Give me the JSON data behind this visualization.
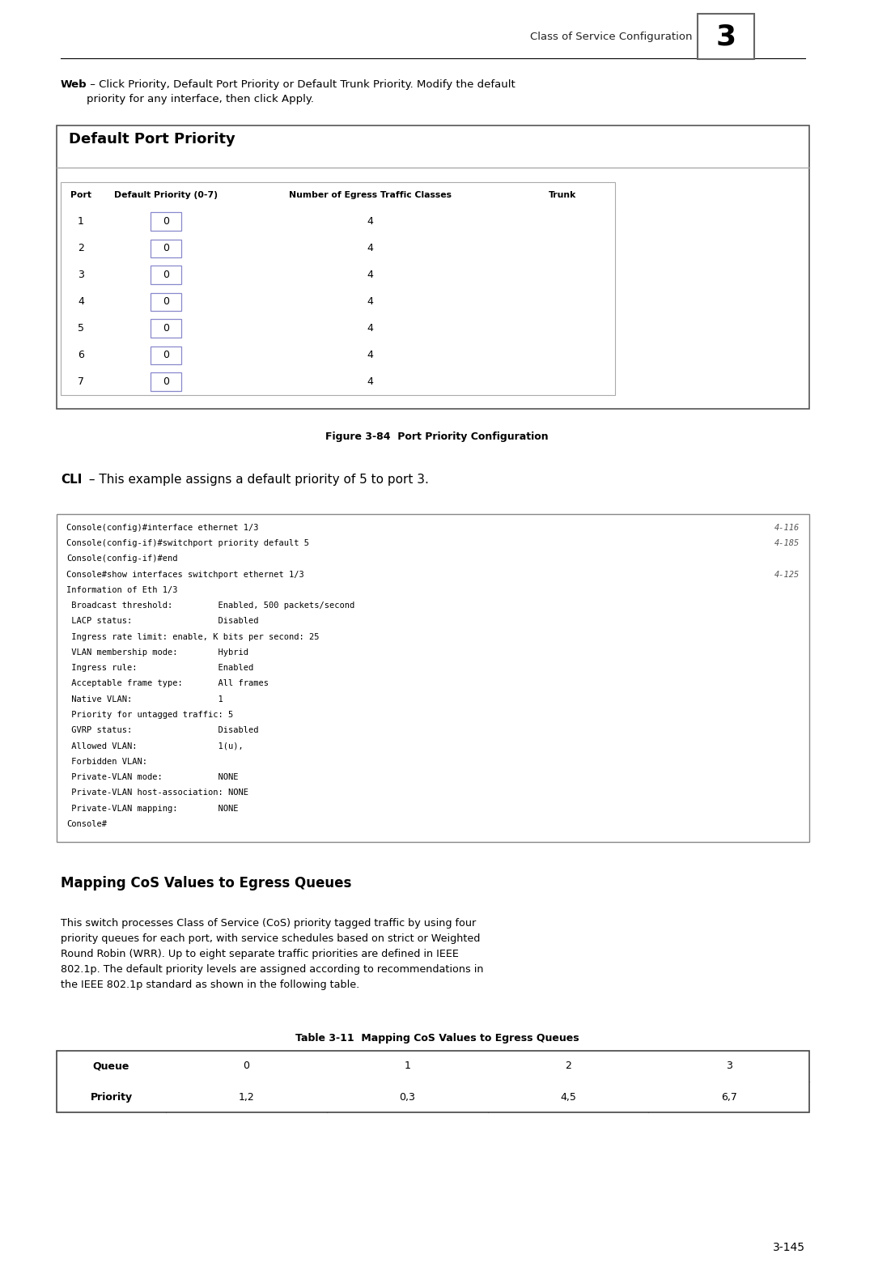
{
  "page_width": 10.8,
  "page_height": 15.7,
  "bg_color": "#ffffff",
  "header_text": "Class of Service Configuration",
  "header_number": "3",
  "web_bold": "Web",
  "web_text": " – Click Priority, Default Port Priority or Default Trunk Priority. Modify the default\npriority for any interface, then click Apply.",
  "box_title": "Default Port Priority",
  "table_headers": [
    "Port",
    "Default Priority (0-7)",
    "Number of Egress Traffic Classes",
    "Trunk"
  ],
  "table_rows": [
    [
      "1",
      "0",
      "4",
      ""
    ],
    [
      "2",
      "0",
      "4",
      ""
    ],
    [
      "3",
      "0",
      "4",
      ""
    ],
    [
      "4",
      "0",
      "4",
      ""
    ],
    [
      "5",
      "0",
      "4",
      ""
    ],
    [
      "6",
      "0",
      "4",
      ""
    ],
    [
      "7",
      "0",
      "4",
      ""
    ]
  ],
  "fig_caption": "Figure 3-84  Port Priority Configuration",
  "cli_bold": "CLI",
  "cli_text": " – This example assigns a default priority of 5 to port 3.",
  "console_lines": [
    [
      "Console(config)#interface ethernet 1/3",
      "4-116"
    ],
    [
      "Console(config-if)#switchport priority default 5",
      "4-185"
    ],
    [
      "Console(config-if)#end",
      ""
    ],
    [
      "Console#show interfaces switchport ethernet 1/3",
      "4-125"
    ],
    [
      "Information of Eth 1/3",
      ""
    ],
    [
      " Broadcast threshold:         Enabled, 500 packets/second",
      ""
    ],
    [
      " LACP status:                 Disabled",
      ""
    ],
    [
      " Ingress rate limit: enable, K bits per second: 25",
      ""
    ],
    [
      " VLAN membership mode:        Hybrid",
      ""
    ],
    [
      " Ingress rule:                Enabled",
      ""
    ],
    [
      " Acceptable frame type:       All frames",
      ""
    ],
    [
      " Native VLAN:                 1",
      ""
    ],
    [
      " Priority for untagged traffic: 5",
      ""
    ],
    [
      " GVRP status:                 Disabled",
      ""
    ],
    [
      " Allowed VLAN:                1(u),",
      ""
    ],
    [
      " Forbidden VLAN:",
      ""
    ],
    [
      " Private-VLAN mode:           NONE",
      ""
    ],
    [
      " Private-VLAN host-association: NONE",
      ""
    ],
    [
      " Private-VLAN mapping:        NONE",
      ""
    ],
    [
      "Console#",
      ""
    ]
  ],
  "section_heading": "Mapping CoS Values to Egress Queues",
  "section_text": "This switch processes Class of Service (CoS) priority tagged traffic by using four\npriority queues for each port, with service schedules based on strict or Weighted\nRound Robin (WRR). Up to eight separate traffic priorities are defined in IEEE\n802.1p. The default priority levels are assigned according to recommendations in\nthe IEEE 802.1p standard as shown in the following table.",
  "table2_caption": "Table 3-11  Mapping CoS Values to Egress Queues",
  "table2_headers": [
    "Queue",
    "0",
    "1",
    "2",
    "3"
  ],
  "table2_rows": [
    [
      "Priority",
      "1,2",
      "0,3",
      "4,5",
      "6,7"
    ]
  ],
  "page_number": "3-145"
}
